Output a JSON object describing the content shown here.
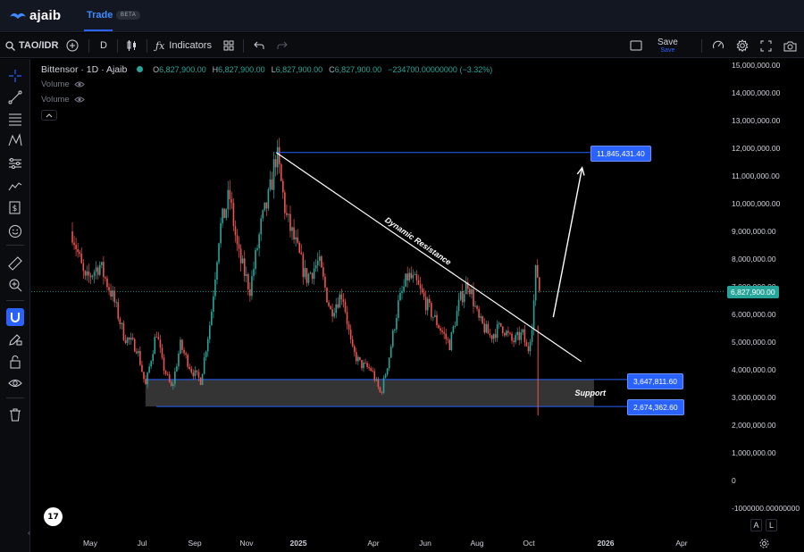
{
  "nav": {
    "brand": "ajaib",
    "trade_label": "Trade",
    "beta_badge": "BETA"
  },
  "toolbar": {
    "symbol": "TAO/IDR",
    "interval": "D",
    "indicators_label": "Indicators",
    "save_label": "Save",
    "save_sub_label": "Save"
  },
  "legend": {
    "title": "Bittensor · 1D · Ajaib",
    "o_key": "O",
    "o_val": "6,827,900.00",
    "h_key": "H",
    "h_val": "6,827,900.00",
    "l_key": "L",
    "l_val": "6,827,900.00",
    "c_key": "C",
    "c_val": "6,827,900.00",
    "change": "−234700.00000000 (−3.32%)",
    "volume_1": "Volume",
    "volume_2": "Volume"
  },
  "colors": {
    "up": "#26a69a",
    "down": "#ef5350",
    "accent": "#2962ff",
    "current_price": "#26a69a",
    "annotation": "#ffffff"
  },
  "annotations": {
    "resistance_text": "Dynamic Resistance",
    "support_text": "Support",
    "target_label": "11,845,431.40",
    "support_top_label": "3,647,811.60",
    "support_bottom_label": "2,674,362.60",
    "current_price_label": "6,827,900.00"
  },
  "scale_buttons": {
    "auto": "A",
    "log": "L"
  },
  "chart_data": {
    "type": "candlestick",
    "symbol": "TAO/IDR",
    "interval": "1D",
    "last_price": 6827900,
    "change": -234700,
    "change_pct": -3.32,
    "y_ticks": [
      "15,000,000.00",
      "14,000,000.00",
      "13,000,000.00",
      "12,000,000.00",
      "11,000,000.00",
      "10,000,000.00",
      "9,000,000.00",
      "8,000,000.00",
      "7,000,000.00",
      "6,000,000.00",
      "5,000,000.00",
      "4,000,000.00",
      "3,000,000.00",
      "2,000,000.00",
      "1,000,000.00",
      "0",
      "-1000000.00000000"
    ],
    "ylim": [
      -1000000,
      15000000
    ],
    "x_ticks": [
      {
        "label": "May",
        "year": false
      },
      {
        "label": "Jul",
        "year": false
      },
      {
        "label": "Sep",
        "year": false
      },
      {
        "label": "Nov",
        "year": false
      },
      {
        "label": "2025",
        "year": true
      },
      {
        "label": "Apr",
        "year": false
      },
      {
        "label": "Jun",
        "year": false
      },
      {
        "label": "Aug",
        "year": false
      },
      {
        "label": "Oct",
        "year": false
      },
      {
        "label": "2026",
        "year": true
      },
      {
        "label": "Apr",
        "year": false
      }
    ],
    "price_path": [
      [
        "2024-04-10",
        9000000
      ],
      [
        "2024-04-25",
        7200000
      ],
      [
        "2024-05-12",
        7800000
      ],
      [
        "2024-05-28",
        6600000
      ],
      [
        "2024-06-10",
        5200000
      ],
      [
        "2024-06-25",
        4800000
      ],
      [
        "2024-07-05",
        3400000
      ],
      [
        "2024-07-18",
        5400000
      ],
      [
        "2024-07-25",
        4200000
      ],
      [
        "2024-08-05",
        3300000
      ],
      [
        "2024-08-15",
        4900000
      ],
      [
        "2024-08-28",
        4000000
      ],
      [
        "2024-09-08",
        3600000
      ],
      [
        "2024-09-20",
        5900000
      ],
      [
        "2024-09-30",
        9000000
      ],
      [
        "2024-10-12",
        10300000
      ],
      [
        "2024-10-22",
        8200000
      ],
      [
        "2024-11-05",
        6900000
      ],
      [
        "2024-11-18",
        9200000
      ],
      [
        "2024-11-28",
        10300000
      ],
      [
        "2024-12-06",
        11845431
      ],
      [
        "2024-12-18",
        9500000
      ],
      [
        "2024-12-28",
        8600000
      ],
      [
        "2025-01-10",
        7300000
      ],
      [
        "2025-01-25",
        7900000
      ],
      [
        "2025-02-08",
        6100000
      ],
      [
        "2025-02-22",
        6800000
      ],
      [
        "2025-03-05",
        4700000
      ],
      [
        "2025-03-15",
        4200000
      ],
      [
        "2025-03-28",
        4000000
      ],
      [
        "2025-04-08",
        3100000
      ],
      [
        "2025-04-18",
        4500000
      ],
      [
        "2025-04-28",
        6300000
      ],
      [
        "2025-05-10",
        7400000
      ],
      [
        "2025-05-20",
        7100000
      ],
      [
        "2025-06-02",
        6300000
      ],
      [
        "2025-06-15",
        5600000
      ],
      [
        "2025-06-28",
        4900000
      ],
      [
        "2025-07-10",
        6500000
      ],
      [
        "2025-07-20",
        7200000
      ],
      [
        "2025-08-01",
        5800000
      ],
      [
        "2025-08-15",
        5200000
      ],
      [
        "2025-08-28",
        5600000
      ],
      [
        "2025-09-10",
        5000000
      ],
      [
        "2025-09-22",
        5300000
      ],
      [
        "2025-09-28",
        4600000
      ],
      [
        "2025-10-04",
        5900000
      ],
      [
        "2025-10-08",
        7800000
      ],
      [
        "2025-10-12",
        6827900
      ]
    ],
    "horizontal_levels": [
      11845431.4,
      3647811.6,
      2674362.6
    ],
    "support_zone": [
      2674362.6,
      3647811.6
    ],
    "resistance_line": [
      [
        "2024-12-06",
        11845431
      ],
      [
        "2025-11-30",
        4300000
      ]
    ],
    "projection_arrow": [
      [
        "2025-10-28",
        5900000
      ],
      [
        "2025-12-01",
        11300000
      ]
    ]
  }
}
